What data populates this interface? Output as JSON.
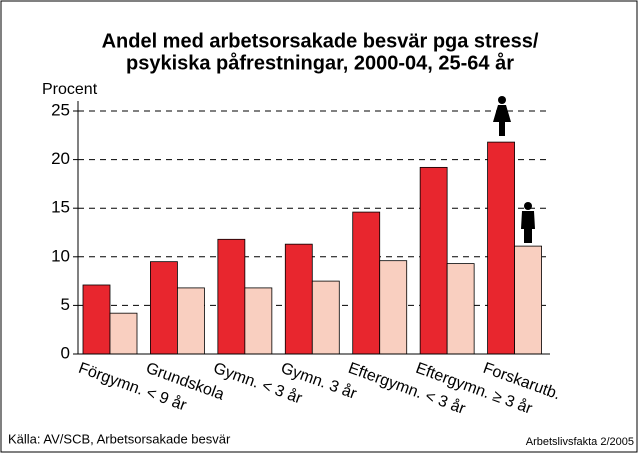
{
  "chart_data": {
    "type": "bar",
    "title": [
      "Andel med arbetsorsakade besvär pga stress/",
      "psykiska påfrestningar, 2000-04, 25-64 år"
    ],
    "ylabel": "Procent",
    "categories": [
      "Förgymn. < 9 år",
      "Grundskola",
      "Gymn. < 3 år",
      "Gymn. 3 år",
      "Eftergymn. < 3 år",
      "Eftergymn. ≥ 3 år",
      "Forskarutb."
    ],
    "series": [
      {
        "color": "#e8262e",
        "values": [
          7.1,
          9.5,
          11.8,
          11.3,
          14.6,
          19.2,
          21.8
        ]
      },
      {
        "color": "#f9cfc0",
        "values": [
          4.2,
          6.8,
          6.8,
          7.5,
          9.6,
          9.3,
          11.1
        ]
      }
    ],
    "ylim": [
      0,
      25
    ],
    "yticks": [
      0,
      5,
      10,
      15,
      20,
      25
    ],
    "grid": true,
    "source": "Källa: AV/SCB, Arbetsorsakade besvär",
    "credit": "Arbetslivsfakta 2/2005"
  }
}
